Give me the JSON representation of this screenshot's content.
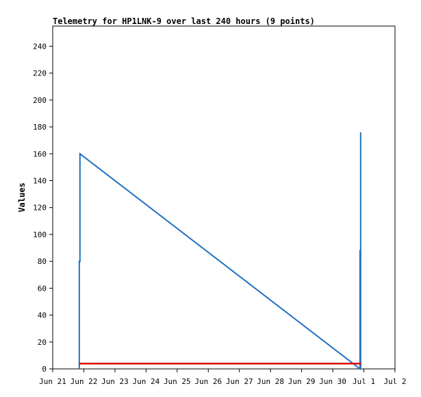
{
  "chart_data": {
    "type": "line",
    "title": "Telemetry for HP1LNK-9 over last 240 hours (9 points)",
    "xlabel": "",
    "ylabel": "Values",
    "x_ticks": [
      "Jun 21",
      "Jun 22",
      "Jun 23",
      "Jun 24",
      "Jun 25",
      "Jun 26",
      "Jun 27",
      "Jun 28",
      "Jun 29",
      "Jun 30",
      "Jul 1",
      "Jul 2"
    ],
    "xlim": [
      "2024-06-21T00:00",
      "2024-07-02T00:00"
    ],
    "y_ticks": [
      0,
      20,
      40,
      60,
      80,
      100,
      120,
      140,
      160,
      180,
      200,
      220,
      240
    ],
    "ylim": [
      0,
      255
    ],
    "grid": false,
    "series": [
      {
        "color": "#1f6fc0",
        "points": [
          {
            "x": "2024-06-21T20:30",
            "y": 0
          },
          {
            "x": "2024-06-21T20:30",
            "y": 80
          },
          {
            "x": "2024-06-21T21:00",
            "y": 80
          },
          {
            "x": "2024-06-21T21:00",
            "y": 160
          },
          {
            "x": "2024-06-30T21:00",
            "y": 0
          },
          {
            "x": "2024-06-30T21:00",
            "y": 88
          },
          {
            "x": "2024-06-30T21:30",
            "y": 88
          },
          {
            "x": "2024-06-30T21:30",
            "y": 176
          },
          {
            "x": "2024-06-30T21:30",
            "y": 0
          }
        ]
      },
      {
        "color": "#dd0000",
        "points": [
          {
            "x": "2024-06-21T20:30",
            "y": 4
          },
          {
            "x": "2024-06-30T22:00",
            "y": 4
          }
        ]
      }
    ]
  }
}
